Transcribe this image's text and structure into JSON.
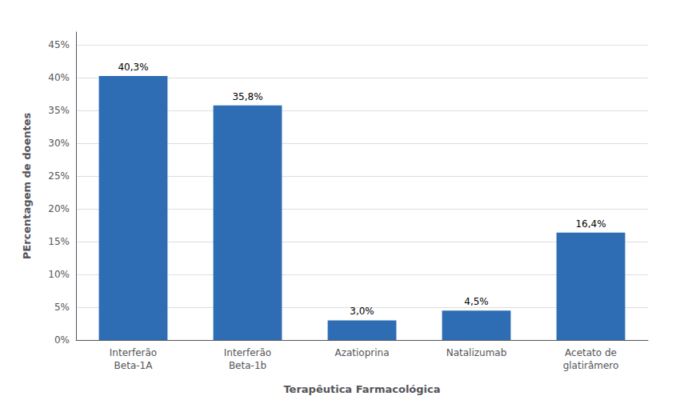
{
  "chart_data": {
    "type": "bar",
    "categories": [
      "Interferão\nBeta-1A",
      "Interferão\nBeta-1b",
      "Azatioprina",
      "Natalizumab",
      "Acetato de\nglatirâmero"
    ],
    "values": [
      40.3,
      35.8,
      3.0,
      4.5,
      16.4
    ],
    "value_labels": [
      "40,3%",
      "35,8%",
      "3,0%",
      "4,5%",
      "16,4%"
    ],
    "data_labels": true,
    "color": "#2E6DB4",
    "xlabel": "Terapêutica Farmacológica",
    "ylabel": "PErcentagem de doentes",
    "ylim": [
      0,
      47
    ],
    "yticks": [
      {
        "value": 0,
        "label": "0%"
      },
      {
        "value": 5,
        "label": "5%"
      },
      {
        "value": 10,
        "label": "10%"
      },
      {
        "value": 15,
        "label": "15%"
      },
      {
        "value": 20,
        "label": "20%"
      },
      {
        "value": 25,
        "label": "25%"
      },
      {
        "value": 30,
        "label": "30%"
      },
      {
        "value": 35,
        "label": "35%"
      },
      {
        "value": 40,
        "label": "40%"
      },
      {
        "value": 45,
        "label": "45%"
      }
    ],
    "grid": true
  }
}
